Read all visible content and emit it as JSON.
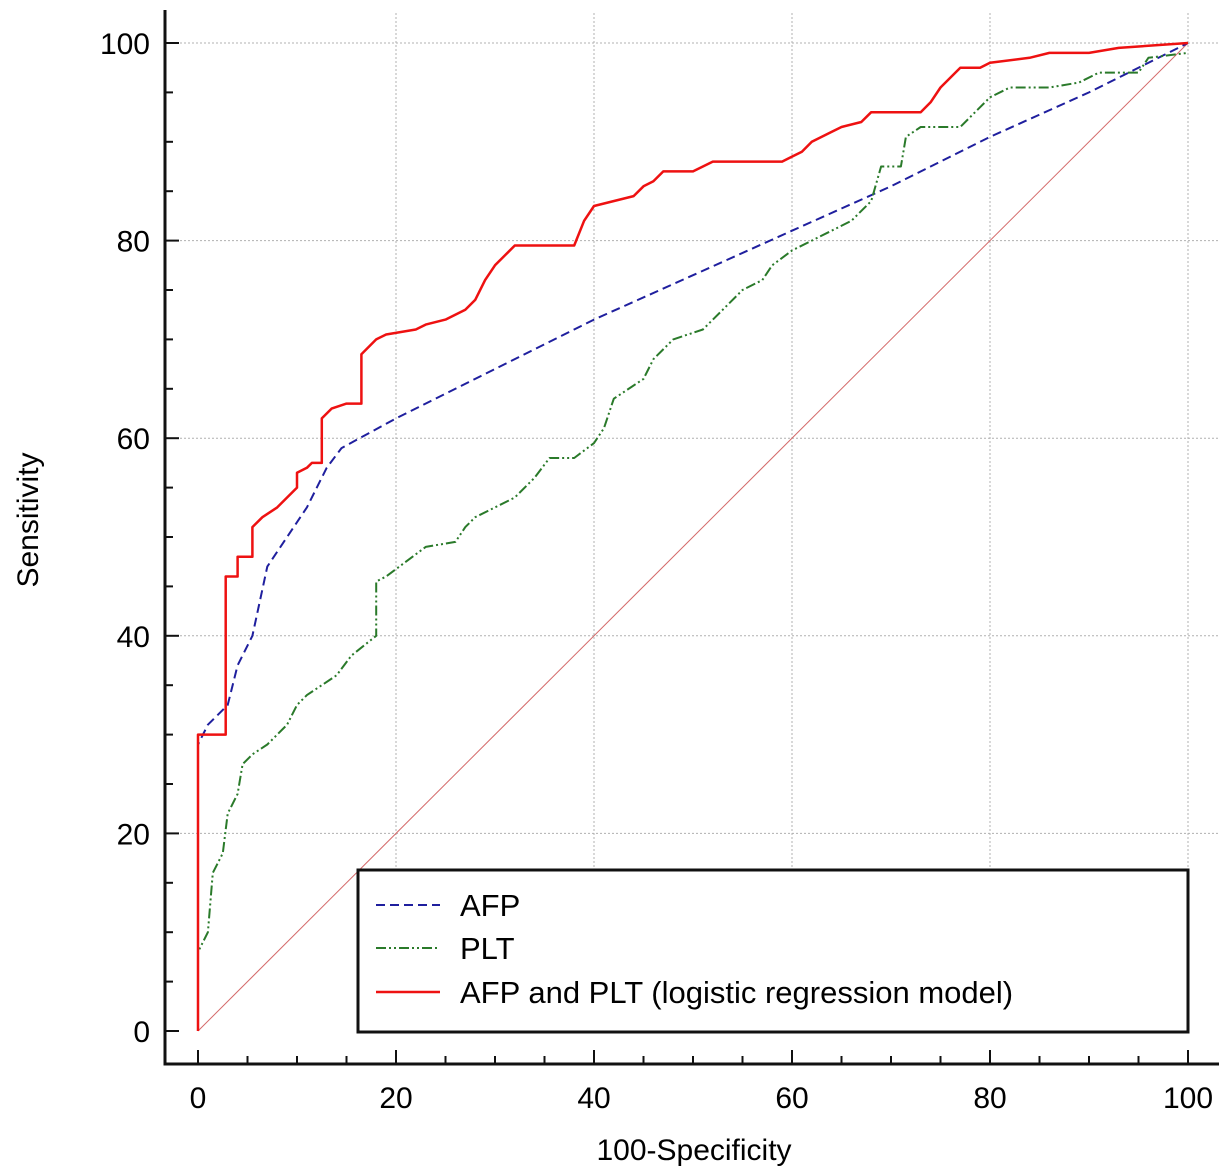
{
  "chart_data": {
    "type": "line",
    "title": "",
    "xlabel": "100-Specificity",
    "ylabel": "Sensitivity",
    "xlim": [
      0,
      100
    ],
    "ylim": [
      0,
      100
    ],
    "xticks": [
      0,
      20,
      40,
      60,
      80,
      100
    ],
    "yticks": [
      0,
      20,
      40,
      60,
      80,
      100
    ],
    "x_tick_labels": [
      "0",
      "20",
      "40",
      "60",
      "80",
      "100"
    ],
    "y_tick_labels": [
      "0",
      "20",
      "40",
      "60",
      "80",
      "100"
    ],
    "grid": true,
    "legend_position": "bottom-right",
    "reference_line": {
      "points": [
        [
          0,
          0
        ],
        [
          100,
          100
        ]
      ],
      "color": "#d46a6a"
    },
    "series": [
      {
        "name": "AFP",
        "color": "#1f1f9e",
        "style": "dashed",
        "points": [
          [
            0,
            0
          ],
          [
            0,
            29
          ],
          [
            1,
            31
          ],
          [
            3,
            33
          ],
          [
            4,
            37
          ],
          [
            5.5,
            40
          ],
          [
            7,
            47
          ],
          [
            9,
            50
          ],
          [
            11,
            53
          ],
          [
            13,
            57
          ],
          [
            14.5,
            59
          ],
          [
            20,
            62
          ],
          [
            30,
            67
          ],
          [
            40,
            72
          ],
          [
            50,
            76.5
          ],
          [
            60,
            81
          ],
          [
            70,
            85.5
          ],
          [
            80,
            90.5
          ],
          [
            90,
            95
          ],
          [
            100,
            100
          ]
        ]
      },
      {
        "name": "PLT",
        "color": "#2a7a2a",
        "style": "dash-dot-dot",
        "points": [
          [
            0,
            0
          ],
          [
            0,
            8
          ],
          [
            1,
            10
          ],
          [
            1.5,
            16
          ],
          [
            2.5,
            18
          ],
          [
            3,
            22
          ],
          [
            4,
            24
          ],
          [
            4.5,
            27
          ],
          [
            5.5,
            28
          ],
          [
            7,
            29
          ],
          [
            9,
            31
          ],
          [
            10,
            33
          ],
          [
            11,
            34
          ],
          [
            14,
            36
          ],
          [
            15.5,
            38
          ],
          [
            18,
            40
          ],
          [
            18,
            45.5
          ],
          [
            19,
            46
          ],
          [
            21,
            47.5
          ],
          [
            23,
            49
          ],
          [
            26,
            49.5
          ],
          [
            27,
            51
          ],
          [
            28,
            52
          ],
          [
            30,
            53
          ],
          [
            32,
            54
          ],
          [
            34,
            56
          ],
          [
            35.5,
            58
          ],
          [
            38,
            58
          ],
          [
            40,
            59.5
          ],
          [
            41,
            61
          ],
          [
            42,
            64
          ],
          [
            45,
            66
          ],
          [
            46,
            68
          ],
          [
            48,
            70
          ],
          [
            51,
            71
          ],
          [
            53,
            73
          ],
          [
            55,
            75
          ],
          [
            57,
            76
          ],
          [
            58,
            77.5
          ],
          [
            60,
            79
          ],
          [
            62,
            80
          ],
          [
            64,
            81
          ],
          [
            66,
            82
          ],
          [
            68,
            84
          ],
          [
            69,
            87.5
          ],
          [
            71,
            87.5
          ],
          [
            71.5,
            90.5
          ],
          [
            73,
            91.5
          ],
          [
            77,
            91.5
          ],
          [
            79,
            93.5
          ],
          [
            80,
            94.5
          ],
          [
            82,
            95.5
          ],
          [
            86,
            95.5
          ],
          [
            89,
            96
          ],
          [
            91,
            97
          ],
          [
            95,
            97
          ],
          [
            96,
            98.5
          ],
          [
            100,
            99
          ]
        ]
      },
      {
        "name": "AFP and PLT (logistic regression model)",
        "color": "#ee1111",
        "style": "solid",
        "points": [
          [
            0,
            0
          ],
          [
            0,
            30
          ],
          [
            2.8,
            30
          ],
          [
            2.8,
            46
          ],
          [
            4,
            46
          ],
          [
            4,
            48
          ],
          [
            5.5,
            48
          ],
          [
            5.5,
            51
          ],
          [
            6.5,
            52
          ],
          [
            8,
            53
          ],
          [
            9,
            54
          ],
          [
            10,
            55
          ],
          [
            10,
            56.5
          ],
          [
            11,
            57
          ],
          [
            11.5,
            57.5
          ],
          [
            12.5,
            57.5
          ],
          [
            12.5,
            62
          ],
          [
            13.5,
            63
          ],
          [
            15,
            63.5
          ],
          [
            16.5,
            63.5
          ],
          [
            16.5,
            68.5
          ],
          [
            18,
            70
          ],
          [
            19,
            70.5
          ],
          [
            22,
            71
          ],
          [
            23,
            71.5
          ],
          [
            25,
            72
          ],
          [
            27,
            73
          ],
          [
            28,
            74
          ],
          [
            29,
            76
          ],
          [
            30,
            77.5
          ],
          [
            31,
            78.5
          ],
          [
            32,
            79.5
          ],
          [
            38,
            79.5
          ],
          [
            39,
            82
          ],
          [
            40,
            83.5
          ],
          [
            44,
            84.5
          ],
          [
            45,
            85.5
          ],
          [
            46,
            86
          ],
          [
            47,
            87
          ],
          [
            50,
            87
          ],
          [
            51,
            87.5
          ],
          [
            52,
            88
          ],
          [
            59,
            88
          ],
          [
            60,
            88.5
          ],
          [
            61,
            89
          ],
          [
            62,
            90
          ],
          [
            64,
            91
          ],
          [
            65,
            91.5
          ],
          [
            67,
            92
          ],
          [
            68,
            93
          ],
          [
            73,
            93
          ],
          [
            74,
            94
          ],
          [
            75,
            95.5
          ],
          [
            76,
            96.5
          ],
          [
            77,
            97.5
          ],
          [
            79,
            97.5
          ],
          [
            80,
            98
          ],
          [
            84,
            98.5
          ],
          [
            86,
            99
          ],
          [
            90,
            99
          ],
          [
            93,
            99.5
          ],
          [
            100,
            100
          ]
        ]
      }
    ]
  }
}
